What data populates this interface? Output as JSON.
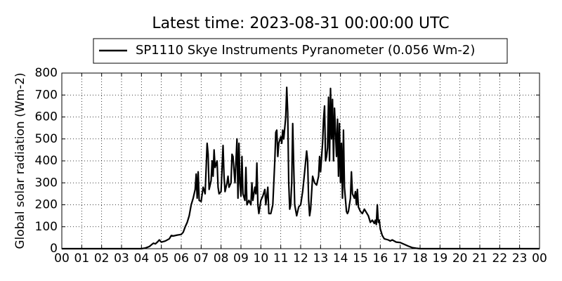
{
  "chart_data": {
    "type": "line",
    "title": "Latest time: 2023-08-31 00:00:00 UTC",
    "y_label": "Global solar radiation (Wm-2)",
    "x": [
      0,
      4.0,
      4.2,
      4.4,
      4.6,
      4.7,
      4.8,
      4.9,
      5.0,
      5.2,
      5.4,
      5.5,
      5.6,
      5.8,
      6.0,
      6.1,
      6.2,
      6.3,
      6.4,
      6.5,
      6.6,
      6.7,
      6.75,
      6.8,
      6.85,
      6.9,
      7.0,
      7.1,
      7.2,
      7.3,
      7.35,
      7.4,
      7.5,
      7.55,
      7.6,
      7.65,
      7.7,
      7.8,
      7.85,
      7.9,
      8.0,
      8.1,
      8.15,
      8.2,
      8.3,
      8.35,
      8.4,
      8.5,
      8.55,
      8.6,
      8.7,
      8.8,
      8.85,
      8.9,
      8.95,
      9.0,
      9.05,
      9.1,
      9.2,
      9.25,
      9.3,
      9.4,
      9.5,
      9.55,
      9.6,
      9.7,
      9.75,
      9.8,
      9.85,
      9.9,
      10.0,
      10.1,
      10.2,
      10.25,
      10.35,
      10.4,
      10.5,
      10.6,
      10.7,
      10.75,
      10.8,
      10.85,
      10.9,
      11.0,
      11.05,
      11.1,
      11.15,
      11.2,
      11.25,
      11.3,
      11.35,
      11.4,
      11.45,
      11.5,
      11.55,
      11.6,
      11.65,
      11.7,
      11.8,
      11.9,
      12.0,
      12.1,
      12.2,
      12.3,
      12.35,
      12.4,
      12.45,
      12.5,
      12.6,
      12.7,
      12.8,
      12.9,
      12.95,
      13.0,
      13.1,
      13.15,
      13.2,
      13.25,
      13.3,
      13.35,
      13.4,
      13.45,
      13.5,
      13.55,
      13.6,
      13.65,
      13.7,
      13.8,
      13.85,
      13.9,
      13.95,
      14.0,
      14.05,
      14.1,
      14.15,
      14.2,
      14.3,
      14.35,
      14.4,
      14.5,
      14.55,
      14.6,
      14.7,
      14.75,
      14.8,
      14.85,
      14.9,
      15.0,
      15.1,
      15.2,
      15.3,
      15.4,
      15.5,
      15.6,
      15.7,
      15.75,
      15.8,
      15.85,
      15.9,
      15.95,
      16.0,
      16.1,
      16.2,
      16.4,
      16.5,
      16.6,
      16.8,
      17.0,
      17.2,
      17.4,
      17.6,
      17.8,
      18.0,
      24
    ],
    "series": [
      {
        "name": "SP1110 Skye Instruments Pyranometer (0.056 Wm-2)",
        "color": "#000000",
        "values": [
          0,
          0,
          3,
          10,
          25,
          22,
          30,
          40,
          30,
          35,
          45,
          60,
          58,
          62,
          65,
          75,
          100,
          120,
          150,
          200,
          230,
          270,
          340,
          230,
          350,
          220,
          215,
          280,
          250,
          480,
          430,
          270,
          310,
          400,
          330,
          450,
          370,
          400,
          280,
          250,
          260,
          470,
          330,
          260,
          300,
          330,
          280,
          300,
          430,
          420,
          300,
          500,
          230,
          480,
          300,
          240,
          420,
          250,
          220,
          370,
          200,
          220,
          200,
          300,
          220,
          280,
          250,
          390,
          200,
          160,
          220,
          240,
          270,
          200,
          280,
          160,
          160,
          200,
          400,
          530,
          540,
          420,
          480,
          510,
          480,
          540,
          500,
          550,
          600,
          735,
          620,
          300,
          180,
          200,
          300,
          570,
          380,
          200,
          150,
          190,
          200,
          260,
          350,
          445,
          400,
          220,
          150,
          180,
          330,
          300,
          290,
          330,
          420,
          350,
          480,
          590,
          650,
          400,
          420,
          460,
          690,
          400,
          730,
          500,
          680,
          400,
          640,
          420,
          590,
          330,
          570,
          300,
          480,
          230,
          540,
          280,
          170,
          160,
          170,
          230,
          350,
          250,
          230,
          260,
          200,
          270,
          190,
          170,
          160,
          180,
          165,
          150,
          120,
          130,
          115,
          130,
          110,
          200,
          120,
          130,
          90,
          60,
          45,
          40,
          35,
          40,
          30,
          28,
          20,
          12,
          5,
          2,
          0,
          0
        ]
      }
    ],
    "xlim": [
      0,
      24
    ],
    "xticks": [
      {
        "value": 0,
        "label": "00"
      },
      {
        "value": 1,
        "label": "01"
      },
      {
        "value": 2,
        "label": "02"
      },
      {
        "value": 3,
        "label": "03"
      },
      {
        "value": 4,
        "label": "04"
      },
      {
        "value": 5,
        "label": "05"
      },
      {
        "value": 6,
        "label": "06"
      },
      {
        "value": 7,
        "label": "07"
      },
      {
        "value": 8,
        "label": "08"
      },
      {
        "value": 9,
        "label": "09"
      },
      10,
      11,
      12,
      13,
      14,
      15,
      16,
      17,
      18,
      19,
      20,
      21,
      22,
      23,
      {
        "value": 24,
        "label": "00"
      }
    ],
    "ylim": [
      0,
      800
    ],
    "yticks": [
      0,
      100,
      200,
      300,
      400,
      500,
      600,
      700,
      800
    ],
    "grid": true,
    "legend": "top"
  }
}
